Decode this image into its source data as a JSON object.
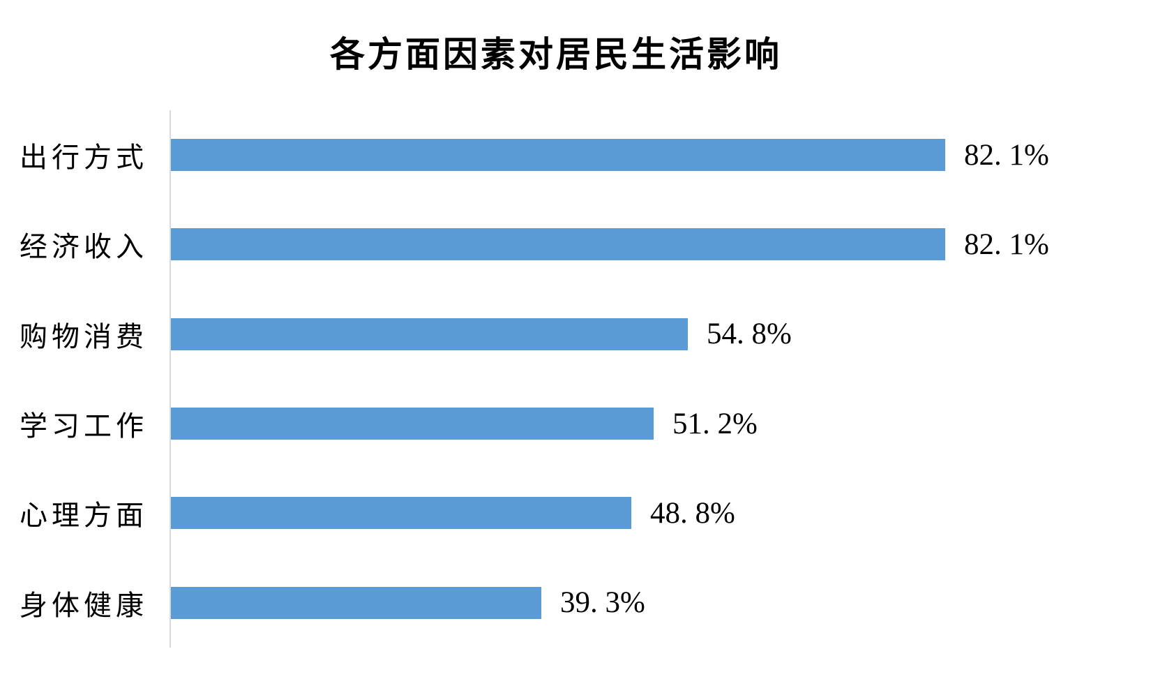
{
  "page": {
    "background_color": "#FFFFFF",
    "text_color": "#000000"
  },
  "chart_data": {
    "type": "bar",
    "orientation": "horizontal",
    "title": "各方面因素对居民生活影响",
    "categories": [
      "出行方式",
      "经济收入",
      "购物消费",
      "学习工作",
      "心理方面",
      "身体健康"
    ],
    "values": [
      82.1,
      82.1,
      54.8,
      51.2,
      48.8,
      39.3
    ],
    "value_labels": [
      "82. 1%",
      "82. 1%",
      "54. 8%",
      "51. 2%",
      "48. 8%",
      "39. 3%"
    ],
    "unit": "%",
    "xlim": [
      0,
      90
    ],
    "grid": false,
    "legend": false,
    "value_axis_visible": false,
    "bar_color": "#5B9BD5",
    "axis_line_color": "#D9D9D9"
  }
}
